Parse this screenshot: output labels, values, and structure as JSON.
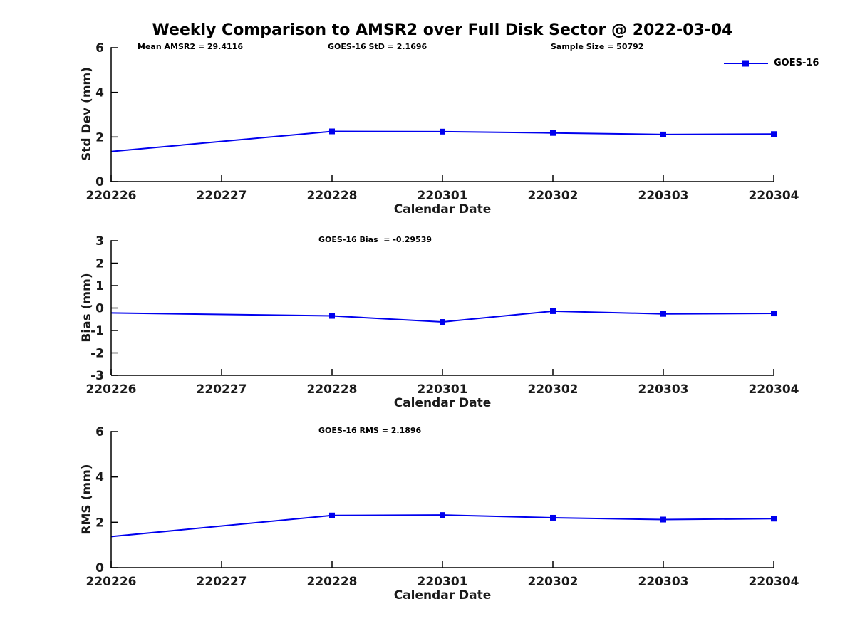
{
  "title": "Weekly Comparison to AMSR2 over Full Disk Sector @ 2022-03-04",
  "background_color": "#ffffff",
  "legend": {
    "label": "GOES-16",
    "color": "#0000ee",
    "marker": "filled-square",
    "position": "top-right",
    "box": false
  },
  "chart_data": [
    {
      "type": "line",
      "name": "std-dev-panel",
      "ylabel": "Std Dev (mm)",
      "xlabel": "Calendar Date",
      "ylim": [
        0,
        6
      ],
      "yticks": [
        0,
        2,
        4,
        6
      ],
      "grid": false,
      "zero_line": false,
      "categories": [
        "220226",
        "220227",
        "220228",
        "220301",
        "220302",
        "220303",
        "220304"
      ],
      "annotations": [
        {
          "text": "Mean AMSR2 = 29.4116"
        },
        {
          "text": "GOES-16 StD = 2.1696"
        },
        {
          "text": "Sample Size = 50792"
        }
      ],
      "series": [
        {
          "name": "GOES-16",
          "color": "#0000ee",
          "points": [
            {
              "x": "220226",
              "y": 1.35,
              "marker": false
            },
            {
              "x": "220228",
              "y": 2.25
            },
            {
              "x": "220301",
              "y": 2.24
            },
            {
              "x": "220302",
              "y": 2.18
            },
            {
              "x": "220303",
              "y": 2.11
            },
            {
              "x": "220304",
              "y": 2.13
            }
          ]
        }
      ]
    },
    {
      "type": "line",
      "name": "bias-panel",
      "ylabel": "Bias (mm)",
      "xlabel": "Calendar Date",
      "ylim": [
        -3,
        3
      ],
      "yticks": [
        -3,
        -2,
        -1,
        0,
        1,
        2,
        3
      ],
      "grid": false,
      "zero_line": true,
      "categories": [
        "220226",
        "220227",
        "220228",
        "220301",
        "220302",
        "220303",
        "220304"
      ],
      "annotations": [
        {
          "text": "GOES-16 Bias  = -0.29539"
        }
      ],
      "series": [
        {
          "name": "GOES-16",
          "color": "#0000ee",
          "points": [
            {
              "x": "220226",
              "y": -0.22,
              "marker": false
            },
            {
              "x": "220228",
              "y": -0.35
            },
            {
              "x": "220301",
              "y": -0.62
            },
            {
              "x": "220302",
              "y": -0.14
            },
            {
              "x": "220303",
              "y": -0.26
            },
            {
              "x": "220304",
              "y": -0.24
            }
          ]
        }
      ]
    },
    {
      "type": "line",
      "name": "rms-panel",
      "ylabel": "RMS (mm)",
      "xlabel": "Calendar Date",
      "ylim": [
        0,
        6
      ],
      "yticks": [
        0,
        2,
        4,
        6
      ],
      "grid": false,
      "zero_line": false,
      "categories": [
        "220226",
        "220227",
        "220228",
        "220301",
        "220302",
        "220303",
        "220304"
      ],
      "annotations": [
        {
          "text": "GOES-16 RMS = 2.1896"
        }
      ],
      "series": [
        {
          "name": "GOES-16",
          "color": "#0000ee",
          "points": [
            {
              "x": "220226",
              "y": 1.37,
              "marker": false
            },
            {
              "x": "220228",
              "y": 2.3
            },
            {
              "x": "220301",
              "y": 2.32
            },
            {
              "x": "220302",
              "y": 2.2
            },
            {
              "x": "220303",
              "y": 2.12
            },
            {
              "x": "220304",
              "y": 2.16
            }
          ]
        }
      ]
    }
  ]
}
